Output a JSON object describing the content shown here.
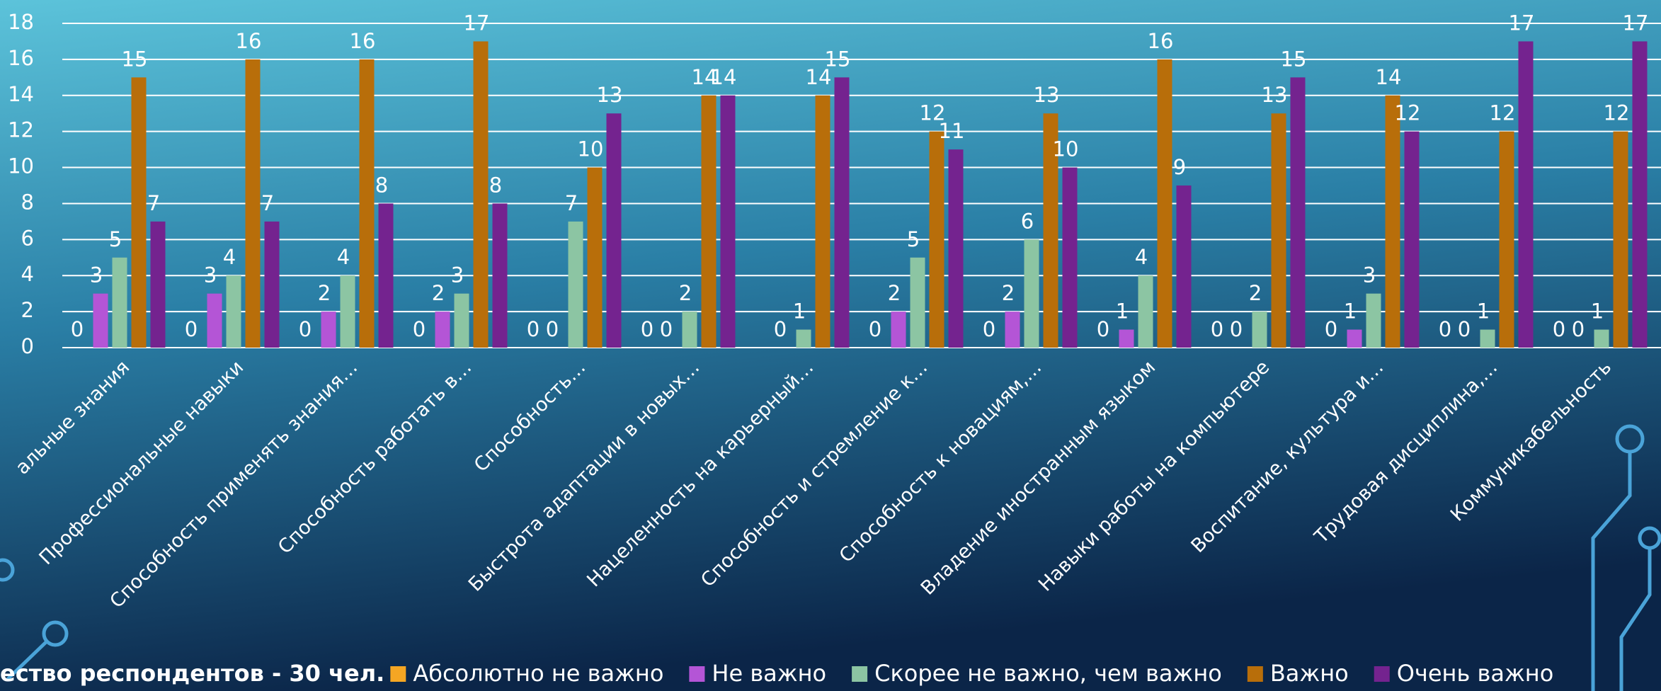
{
  "chart_data": {
    "type": "bar",
    "annotation": "ество респондентов - 30 чел.",
    "categories": [
      "альные знания",
      "Профессиональные навыки",
      "Способность применять знания…",
      "Способность работать в…",
      "Способность…",
      "Быстрота адаптации в новых…",
      "Нацеленность на карьерный…",
      "Способность и стремление к…",
      "Способность к новациям,…",
      "Владение иностранным языком",
      "Навыки работы на компьютере",
      "Воспитание, культура и…",
      "Трудовая дисциплина,…",
      "Коммуникабельность"
    ],
    "series": [
      {
        "name": "Абсолютно не важно",
        "color": "#f5a623",
        "values": [
          0,
          0,
          0,
          0,
          0,
          0,
          null,
          0,
          0,
          0,
          0,
          0,
          0,
          0
        ]
      },
      {
        "name": "Не важно",
        "color": "#b455d6",
        "values": [
          3,
          3,
          2,
          2,
          0,
          0,
          0,
          2,
          2,
          1,
          0,
          1,
          0,
          0
        ]
      },
      {
        "name": "Скорее не важно, чем важно",
        "color": "#8cc5a3",
        "values": [
          5,
          4,
          4,
          3,
          7,
          2,
          1,
          5,
          6,
          4,
          2,
          3,
          1,
          1
        ]
      },
      {
        "name": "Важно",
        "color": "#b86e0a",
        "values": [
          15,
          16,
          16,
          17,
          10,
          14,
          14,
          12,
          13,
          16,
          13,
          14,
          12,
          12
        ]
      },
      {
        "name": "Очень важно",
        "color": "#74238f",
        "values": [
          7,
          7,
          8,
          8,
          13,
          14,
          15,
          11,
          10,
          9,
          15,
          12,
          17,
          17
        ]
      }
    ],
    "ylim": [
      0,
      18
    ],
    "yticks": [
      0,
      2,
      4,
      6,
      8,
      10,
      12,
      14,
      16,
      18
    ],
    "grid": true
  }
}
